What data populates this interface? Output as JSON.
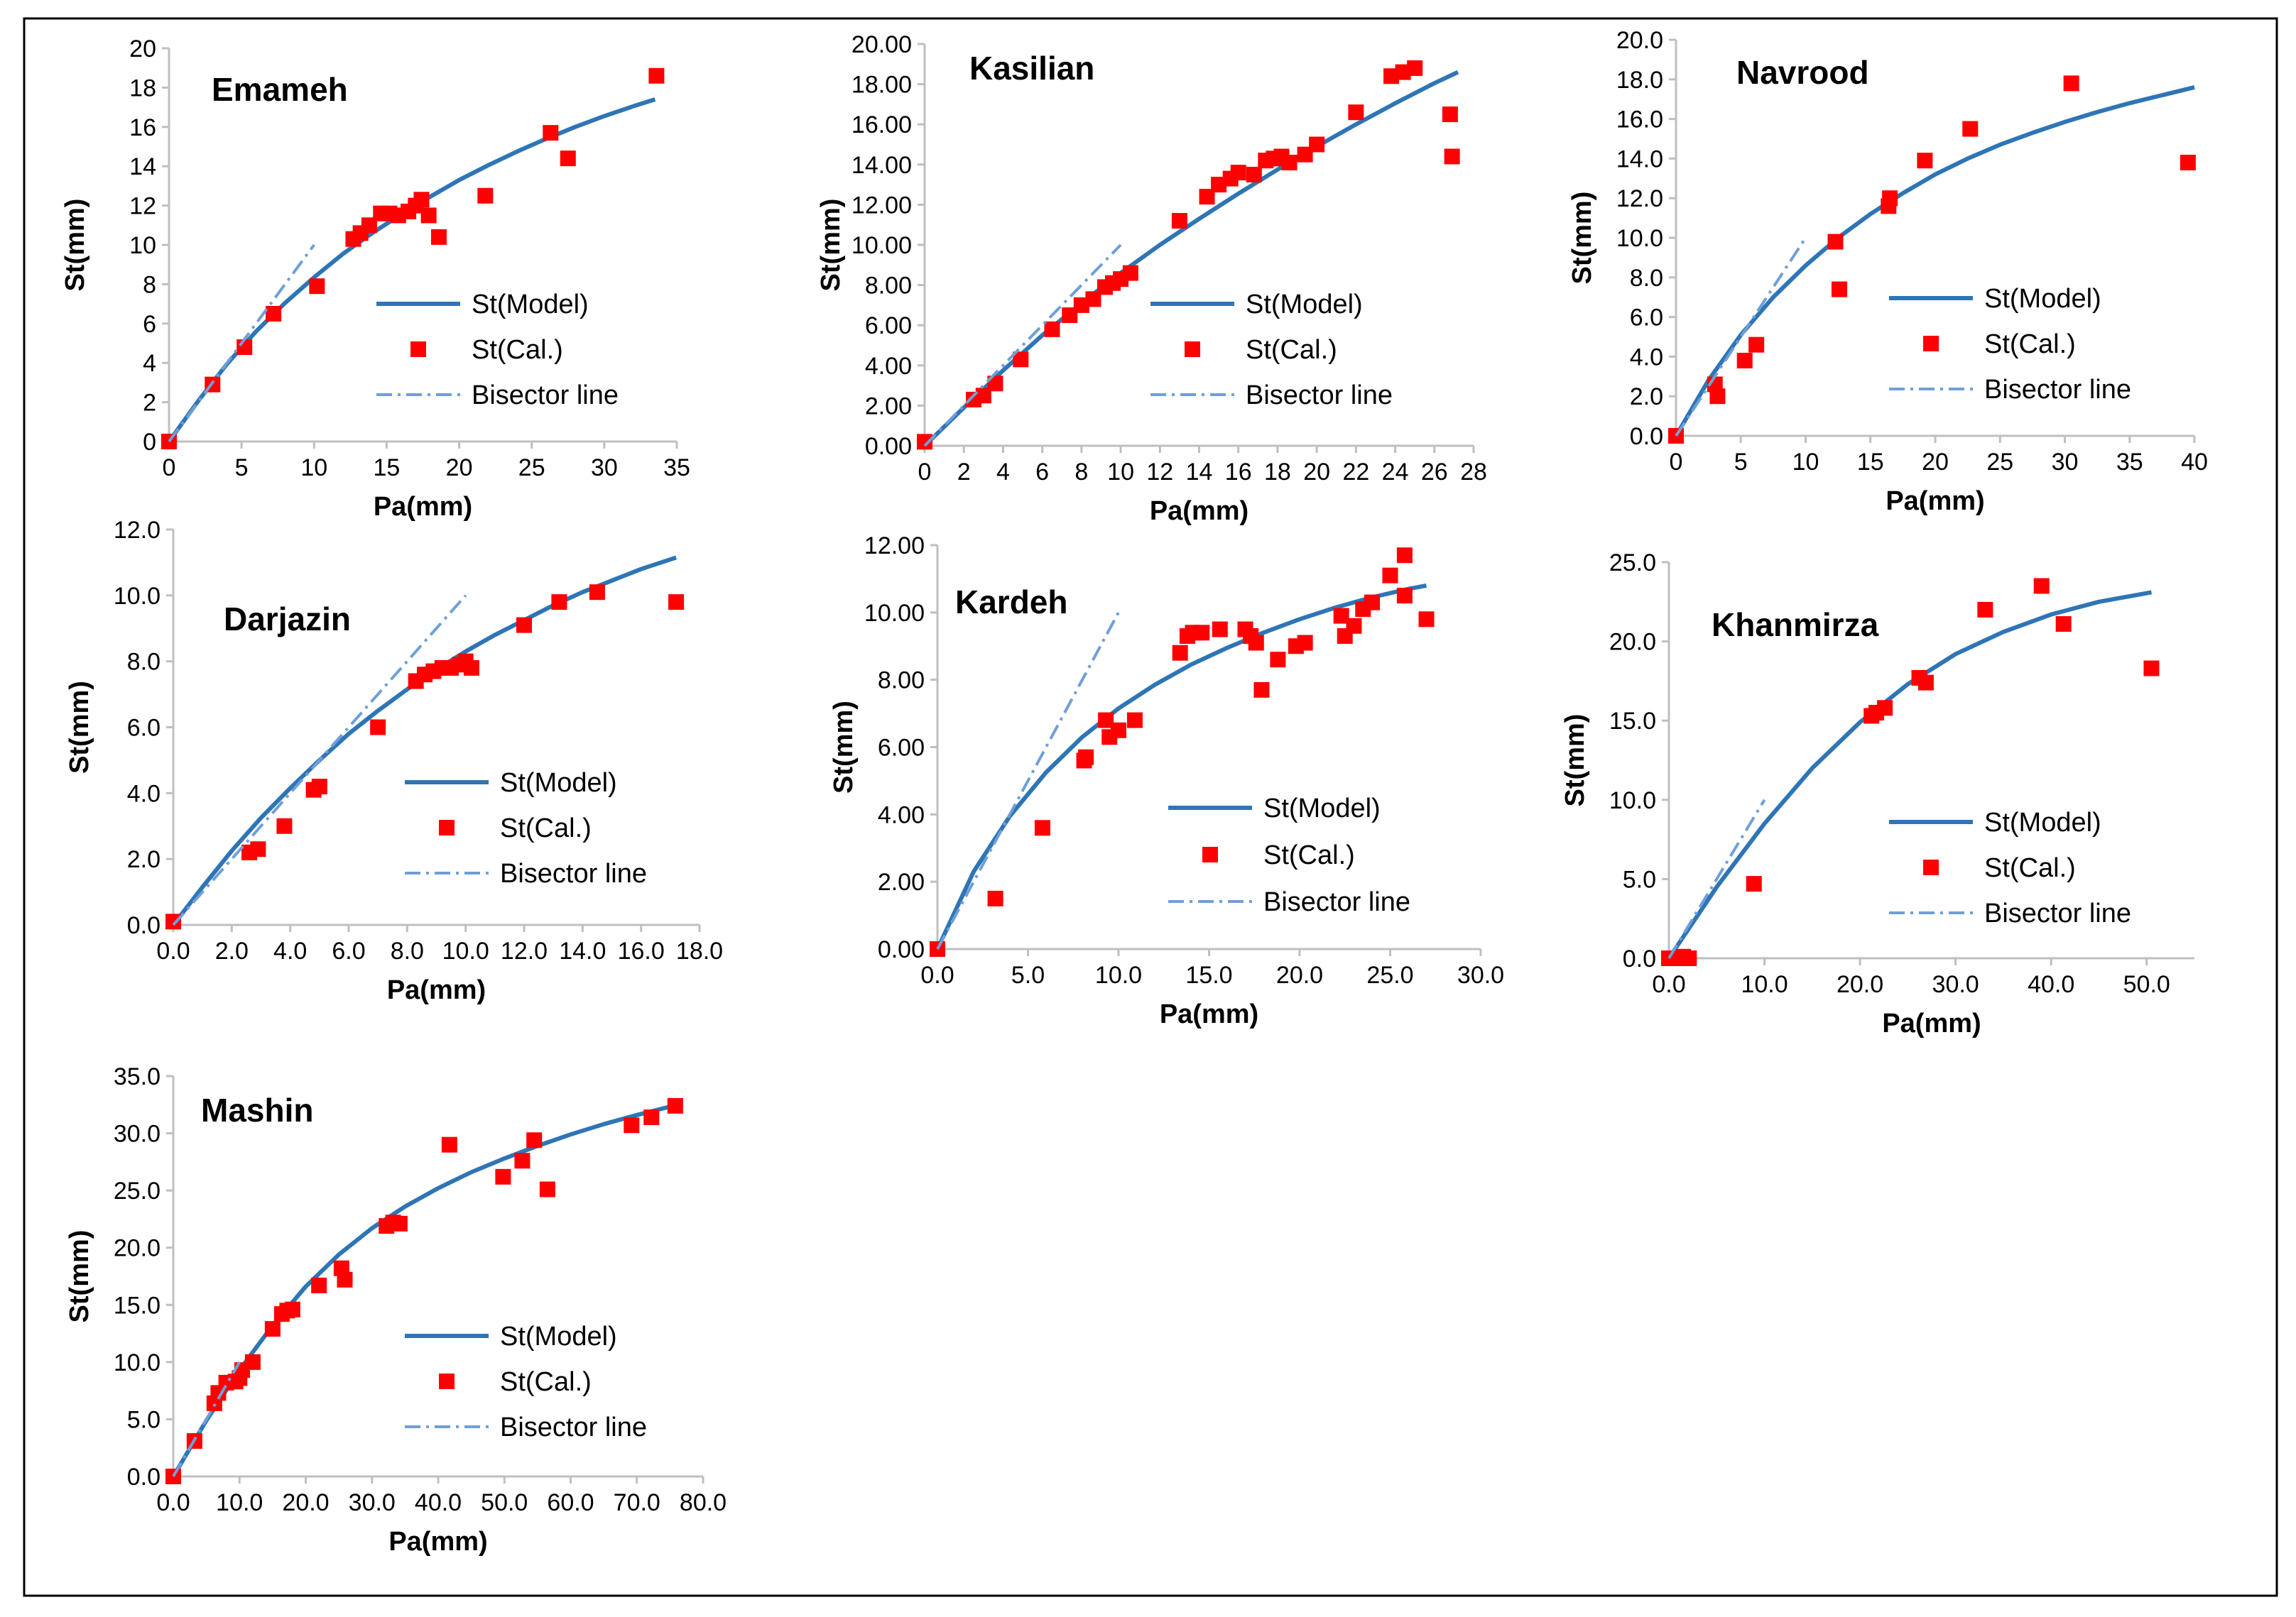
{
  "legend_labels": {
    "model": "St(Model)",
    "cal": "St(Cal.)",
    "bisector": "Bisector line"
  },
  "colors": {
    "model": "#2e75b6",
    "cal": "#ff0000",
    "bisector": "#6f9fd8",
    "axis": "#bfbfbf",
    "frame": "#000000"
  },
  "chart_data": [
    {
      "type": "scatter",
      "title": "Emameh",
      "xlabel": "Pa(mm)",
      "ylabel": "St(mm)",
      "xlim": [
        0,
        35
      ],
      "ylim": [
        0,
        20
      ],
      "xstep": 5,
      "ystep": 2,
      "xdec": 0,
      "ydec": 0,
      "grid": false,
      "xticks": [
        "0",
        "5",
        "10",
        "15",
        "20",
        "25",
        "30",
        "35"
      ],
      "yticks": [
        "0",
        "2",
        "4",
        "6",
        "8",
        "10",
        "12",
        "14",
        "16",
        "18",
        "20"
      ],
      "series": [
        {
          "name": "St(Model)",
          "kind": "line",
          "x": [
            0,
            2,
            4,
            6,
            8,
            10,
            12,
            14,
            16,
            18,
            20,
            22,
            24,
            26,
            28,
            30,
            32,
            33.5
          ],
          "y": [
            0,
            2.05,
            3.95,
            5.6,
            7.05,
            8.35,
            9.55,
            10.6,
            11.55,
            12.45,
            13.3,
            14.05,
            14.75,
            15.4,
            16.0,
            16.55,
            17.05,
            17.4
          ]
        },
        {
          "name": "St(Cal.)",
          "kind": "scatter",
          "x": [
            0,
            3,
            5.2,
            7.2,
            10.2,
            12.7,
            13.2,
            13.8,
            14.6,
            15.2,
            15.8,
            16.5,
            17.0,
            17.4,
            17.9,
            18.6,
            21.8,
            26.3,
            27.5,
            33.6
          ],
          "y": [
            0,
            2.9,
            4.8,
            6.5,
            7.9,
            10.3,
            10.6,
            11.0,
            11.6,
            11.6,
            11.5,
            11.7,
            12.0,
            12.3,
            11.5,
            10.4,
            12.5,
            15.7,
            14.4,
            18.6
          ]
        },
        {
          "name": "Bisector line",
          "kind": "dash",
          "x": [
            0,
            10
          ],
          "y": [
            0,
            10
          ]
        }
      ]
    },
    {
      "type": "scatter",
      "title": "Kasilian",
      "xlabel": "Pa(mm)",
      "ylabel": "St(mm)",
      "xlim": [
        0,
        28
      ],
      "ylim": [
        0,
        20
      ],
      "xstep": 2,
      "ystep": 2,
      "xdec": 0,
      "ydec": 2,
      "grid": false,
      "xticks": [
        "0",
        "2",
        "4",
        "6",
        "8",
        "10",
        "12",
        "14",
        "16",
        "18",
        "20",
        "22",
        "24",
        "26",
        "28"
      ],
      "yticks": [
        "0.00",
        "2.00",
        "4.00",
        "6.00",
        "8.00",
        "10.00",
        "12.00",
        "14.00",
        "16.00",
        "18.00",
        "20.00"
      ],
      "series": [
        {
          "name": "St(Model)",
          "kind": "line",
          "x": [
            0,
            2,
            4,
            6,
            8,
            10,
            12,
            14,
            16,
            18,
            20,
            22,
            24,
            26,
            27.2
          ],
          "y": [
            0,
            1.9,
            3.75,
            5.5,
            7.1,
            8.6,
            10.0,
            11.3,
            12.55,
            13.75,
            14.9,
            16.0,
            17.05,
            18.05,
            18.6
          ]
        },
        {
          "name": "St(Cal.)",
          "kind": "scatter",
          "x": [
            0,
            2.5,
            3,
            3.6,
            4.9,
            6.5,
            7.4,
            8,
            8.6,
            9.2,
            9.6,
            10,
            10.5,
            13,
            14.4,
            15,
            15.6,
            16,
            16.8,
            17.4,
            17.8,
            18.2,
            18.6,
            19.4,
            20,
            22,
            23.8,
            24.4,
            25,
            26.8,
            26.9
          ],
          "y": [
            0.2,
            2.3,
            2.5,
            3.1,
            4.3,
            5.8,
            6.5,
            7.0,
            7.3,
            7.9,
            8.1,
            8.3,
            8.6,
            11.2,
            12.4,
            13.0,
            13.3,
            13.6,
            13.5,
            14.2,
            14.3,
            14.4,
            14.1,
            14.5,
            15.0,
            16.6,
            18.4,
            18.6,
            18.8,
            16.5,
            14.4
          ]
        },
        {
          "name": "Bisector line",
          "kind": "dash",
          "x": [
            0,
            10
          ],
          "y": [
            0,
            10
          ]
        }
      ]
    },
    {
      "type": "scatter",
      "title": "Navrood",
      "xlabel": "Pa(mm)",
      "ylabel": "St(mm)",
      "xlim": [
        0,
        40
      ],
      "ylim": [
        0,
        20
      ],
      "xstep": 5,
      "ystep": 2,
      "xdec": 0,
      "ydec": 1,
      "grid": false,
      "xticks": [
        "0",
        "5",
        "10",
        "15",
        "20",
        "25",
        "30",
        "35",
        "40"
      ],
      "yticks": [
        "0.0",
        "2.0",
        "4.0",
        "6.0",
        "8.0",
        "10.0",
        "12.0",
        "14.0",
        "16.0",
        "18.0",
        "20.0"
      ],
      "series": [
        {
          "name": "St(Model)",
          "kind": "line",
          "x": [
            0,
            2.5,
            5,
            7.5,
            10,
            12.5,
            15,
            17.5,
            20,
            22.5,
            25,
            27.5,
            30,
            32.5,
            35,
            37.5,
            40
          ],
          "y": [
            0,
            2.8,
            5.1,
            7.0,
            8.6,
            10.0,
            11.2,
            12.25,
            13.2,
            14.0,
            14.7,
            15.3,
            15.85,
            16.35,
            16.8,
            17.2,
            17.6
          ]
        },
        {
          "name": "St(Cal.)",
          "kind": "scatter",
          "x": [
            0,
            3,
            3.2,
            5.3,
            6.2,
            12.3,
            12.6,
            16.4,
            16.5,
            19.2,
            22.7,
            30.5,
            39.5
          ],
          "y": [
            0,
            2.6,
            2.0,
            3.8,
            4.6,
            9.8,
            7.4,
            11.6,
            12.0,
            13.9,
            15.5,
            17.8,
            13.8
          ]
        },
        {
          "name": "Bisector line",
          "kind": "dash",
          "x": [
            0,
            10
          ],
          "y": [
            0,
            10
          ]
        }
      ]
    },
    {
      "type": "scatter",
      "title": "Darjazin",
      "xlabel": "Pa(mm)",
      "ylabel": "St(mm)",
      "xlim": [
        0,
        18
      ],
      "ylim": [
        0,
        12
      ],
      "xstep": 2,
      "ystep": 2,
      "xdec": 1,
      "ydec": 1,
      "grid": false,
      "xticks": [
        "0.0",
        "2.0",
        "4.0",
        "6.0",
        "8.0",
        "10.0",
        "12.0",
        "14.0",
        "16.0",
        "18.0"
      ],
      "yticks": [
        "0.0",
        "2.0",
        "4.0",
        "6.0",
        "8.0",
        "10.0",
        "12.0"
      ],
      "series": [
        {
          "name": "St(Model)",
          "kind": "line",
          "x": [
            0,
            1,
            2,
            3,
            4,
            5,
            6,
            7,
            8,
            9,
            10,
            11,
            12,
            13,
            14,
            15,
            16,
            17.2
          ],
          "y": [
            0,
            1.15,
            2.25,
            3.25,
            4.15,
            5.0,
            5.8,
            6.5,
            7.15,
            7.75,
            8.3,
            8.8,
            9.25,
            9.7,
            10.1,
            10.45,
            10.8,
            11.15
          ]
        },
        {
          "name": "St(Cal.)",
          "kind": "scatter",
          "x": [
            0,
            2.6,
            2.9,
            3.8,
            4.8,
            5.0,
            7.0,
            8.3,
            8.6,
            8.9,
            9.2,
            9.5,
            9.8,
            10.0,
            10.2,
            12.0,
            13.2,
            14.5,
            17.2
          ],
          "y": [
            0.1,
            2.2,
            2.3,
            3.0,
            4.1,
            4.2,
            6.0,
            7.4,
            7.6,
            7.7,
            7.8,
            7.8,
            7.9,
            8.0,
            7.8,
            9.1,
            9.8,
            10.1,
            9.8
          ]
        },
        {
          "name": "Bisector line",
          "kind": "dash",
          "x": [
            0,
            10
          ],
          "y": [
            0,
            10
          ]
        }
      ]
    },
    {
      "type": "scatter",
      "title": "Kardeh",
      "xlabel": "Pa(mm)",
      "ylabel": "St(mm)",
      "xlim": [
        0,
        30
      ],
      "ylim": [
        0,
        12
      ],
      "xstep": 5,
      "ystep": 2,
      "xdec": 1,
      "ydec": 2,
      "grid": false,
      "xticks": [
        "0.0",
        "5.0",
        "10.0",
        "15.0",
        "20.0",
        "25.0",
        "30.0"
      ],
      "yticks": [
        "0.00",
        "2.00",
        "4.00",
        "6.00",
        "8.00",
        "10.00",
        "12.00"
      ],
      "series": [
        {
          "name": "St(Model)",
          "kind": "line",
          "x": [
            0,
            2,
            4,
            6,
            8,
            10,
            12,
            14,
            16,
            18,
            20,
            22,
            24,
            26,
            27
          ],
          "y": [
            0,
            2.3,
            3.95,
            5.25,
            6.3,
            7.15,
            7.85,
            8.45,
            8.95,
            9.4,
            9.8,
            10.15,
            10.45,
            10.7,
            10.8
          ]
        },
        {
          "name": "St(Cal.)",
          "kind": "scatter",
          "x": [
            0,
            3.2,
            5.8,
            8.1,
            8.2,
            9.3,
            9.5,
            10.0,
            10.9,
            13.4,
            13.8,
            14.1,
            14.6,
            15.6,
            17.0,
            17.3,
            17.6,
            17.9,
            18.8,
            19.8,
            20.3,
            22.3,
            22.5,
            23.0,
            23.5,
            24.0,
            25.0,
            25.8,
            25.8,
            27.0
          ],
          "y": [
            0,
            1.5,
            3.6,
            5.6,
            5.7,
            6.8,
            6.3,
            6.5,
            6.8,
            8.8,
            9.3,
            9.4,
            9.4,
            9.5,
            9.5,
            9.3,
            9.1,
            7.7,
            8.6,
            9.0,
            9.1,
            9.9,
            9.3,
            9.6,
            10.1,
            10.3,
            11.1,
            11.7,
            10.5,
            9.8
          ]
        },
        {
          "name": "Bisector line",
          "kind": "dash",
          "x": [
            0,
            10
          ],
          "y": [
            0,
            10
          ]
        }
      ]
    },
    {
      "type": "scatter",
      "title": "Khanmirza",
      "xlabel": "Pa(mm)",
      "ylabel": "St(mm)",
      "xlim": [
        0,
        55
      ],
      "ylim": [
        0,
        25
      ],
      "xstep": 10,
      "ystep": 5,
      "xdec": 1,
      "ydec": 1,
      "grid": false,
      "xticks": [
        "0.0",
        "10.0",
        "20.0",
        "30.0",
        "40.0",
        "50.0"
      ],
      "yticks": [
        "0.0",
        "5.0",
        "10.0",
        "15.0",
        "20.0",
        "25.0"
      ],
      "series": [
        {
          "name": "St(Model)",
          "kind": "line",
          "x": [
            0,
            5,
            10,
            15,
            20,
            25,
            30,
            35,
            40,
            45,
            50.5
          ],
          "y": [
            0,
            4.5,
            8.5,
            12.0,
            14.9,
            17.3,
            19.2,
            20.6,
            21.7,
            22.5,
            23.1
          ]
        },
        {
          "name": "St(Cal.)",
          "kind": "scatter",
          "x": [
            0,
            1.0,
            1.5,
            2.1,
            8.9,
            21.2,
            21.7,
            22.6,
            26.2,
            26.9,
            33.1,
            39.0,
            41.3,
            50.5
          ],
          "y": [
            0,
            0,
            0.1,
            0,
            4.7,
            15.3,
            15.5,
            15.8,
            17.7,
            17.4,
            22.0,
            23.5,
            21.1,
            18.3
          ]
        },
        {
          "name": "Bisector line",
          "kind": "dash",
          "x": [
            0,
            10
          ],
          "y": [
            0,
            10
          ]
        }
      ]
    },
    {
      "type": "scatter",
      "title": "Mashin",
      "xlabel": "Pa(mm)",
      "ylabel": "St(mm)",
      "xlim": [
        0,
        80
      ],
      "ylim": [
        0,
        35
      ],
      "xstep": 10,
      "ystep": 5,
      "xdec": 1,
      "ydec": 1,
      "grid": false,
      "xticks": [
        "0.0",
        "10.0",
        "20.0",
        "30.0",
        "40.0",
        "50.0",
        "60.0",
        "70.0",
        "80.0"
      ],
      "yticks": [
        "0.0",
        "5.0",
        "10.0",
        "15.0",
        "20.0",
        "25.0",
        "30.0",
        "35.0"
      ],
      "series": [
        {
          "name": "St(Model)",
          "kind": "line",
          "x": [
            0,
            5,
            10,
            15,
            20,
            25,
            30,
            35,
            40,
            45,
            50,
            55,
            60,
            65,
            70,
            75.5
          ],
          "y": [
            0,
            4.9,
            9.3,
            13.2,
            16.6,
            19.4,
            21.7,
            23.6,
            25.2,
            26.6,
            27.8,
            28.9,
            29.9,
            30.8,
            31.6,
            32.4
          ]
        },
        {
          "name": "St(Cal.)",
          "kind": "scatter",
          "x": [
            0,
            3.2,
            6.2,
            6.8,
            8.0,
            9.4,
            10.0,
            10.4,
            12.0,
            15.0,
            16.4,
            17.2,
            18.0,
            22.0,
            25.4,
            25.9,
            32.2,
            33.2,
            34.2,
            41.7,
            49.8,
            52.7,
            54.5,
            56.5,
            69.2,
            72.2,
            75.8
          ],
          "y": [
            0,
            3.1,
            6.4,
            7.3,
            8.2,
            8.3,
            8.6,
            9.3,
            10.0,
            12.9,
            14.2,
            14.5,
            14.6,
            16.7,
            18.2,
            17.2,
            21.9,
            22.2,
            22.1,
            29.0,
            26.2,
            27.6,
            29.4,
            25.1,
            30.7,
            31.4,
            32.4
          ]
        },
        {
          "name": "Bisector line",
          "kind": "dash",
          "x": [
            0,
            10
          ],
          "y": [
            0,
            10
          ]
        }
      ]
    }
  ]
}
